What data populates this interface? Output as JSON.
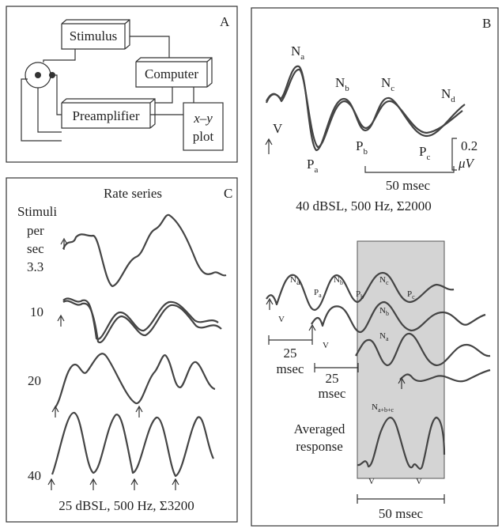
{
  "panel_a": {
    "label": "A",
    "stimulus": "Stimulus",
    "computer": "Computer",
    "preamplifier": "Preamplifier",
    "plot": [
      "x–y",
      "plot"
    ]
  },
  "panel_b": {
    "label": "B",
    "top": {
      "na": {
        "base": "N",
        "sub": "a"
      },
      "nb": {
        "base": "N",
        "sub": "b"
      },
      "nc": {
        "base": "N",
        "sub": "c"
      },
      "nd": {
        "base": "N",
        "sub": "d"
      },
      "v": "V",
      "pa": {
        "base": "P",
        "sub": "a"
      },
      "pb": {
        "base": "P",
        "sub": "b"
      },
      "pc": {
        "base": "P",
        "sub": "c"
      },
      "amplitude_scale": [
        "0.2",
        "μV"
      ],
      "time_scale": "50 msec",
      "caption": "40 dBSL, 500 Hz, Σ2000"
    },
    "bottom": {
      "na": {
        "base": "N",
        "sub": "a"
      },
      "nb": {
        "base": "N",
        "sub": "b"
      },
      "nc": {
        "base": "N",
        "sub": "c"
      },
      "pa": {
        "base": "P",
        "sub": "a"
      },
      "pb": {
        "base": "P",
        "sub": "b"
      },
      "pc": {
        "base": "P",
        "sub": "c"
      },
      "nb2": {
        "base": "N",
        "sub": "b"
      },
      "na3": {
        "base": "N",
        "sub": "a"
      },
      "v1": "V",
      "v2": "V",
      "shift1": [
        "25",
        "msec"
      ],
      "shift2": [
        "25",
        "msec"
      ],
      "averaged": [
        "Averaged",
        "response"
      ],
      "nabc": {
        "base": "N",
        "sub": "a+b+c"
      },
      "v3": "V",
      "v4": "V",
      "time_scale": "50 msec"
    }
  },
  "panel_c": {
    "label": "C",
    "title": "Rate series",
    "stimuli": [
      "Stimuli",
      "per",
      "sec"
    ],
    "rates": [
      "3.3",
      "10",
      "20",
      "40"
    ],
    "caption": "25 dBSL, 500 Hz, Σ3200"
  }
}
